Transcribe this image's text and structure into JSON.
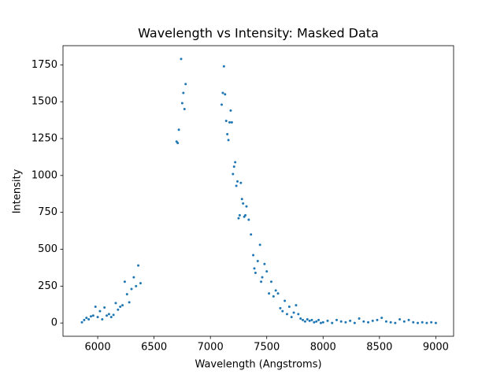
{
  "chart_data": {
    "type": "scatter",
    "title": "Wavelength vs Intensity: Masked Data",
    "x_label": "Wavelength (Angstroms)",
    "y_label": "Intensity",
    "x": [
      5860,
      5880,
      5900,
      5920,
      5940,
      5960,
      5980,
      6000,
      6020,
      6040,
      6060,
      6080,
      6100,
      6120,
      6140,
      6160,
      6180,
      6200,
      6220,
      6240,
      6260,
      6280,
      6300,
      6320,
      6340,
      6360,
      6380,
      6700,
      6710,
      6720,
      6740,
      6750,
      6760,
      6770,
      6780,
      7100,
      7110,
      7120,
      7130,
      7140,
      7150,
      7160,
      7170,
      7180,
      7190,
      7200,
      7210,
      7220,
      7230,
      7240,
      7250,
      7260,
      7270,
      7280,
      7290,
      7300,
      7310,
      7320,
      7340,
      7360,
      7380,
      7390,
      7400,
      7420,
      7440,
      7450,
      7460,
      7480,
      7500,
      7520,
      7540,
      7560,
      7580,
      7600,
      7620,
      7640,
      7660,
      7680,
      7700,
      7720,
      7740,
      7760,
      7780,
      7800,
      7820,
      7840,
      7860,
      7880,
      7900,
      7920,
      7940,
      7960,
      7980,
      8000,
      8040,
      8080,
      8120,
      8160,
      8200,
      8240,
      8280,
      8320,
      8360,
      8400,
      8440,
      8480,
      8520,
      8560,
      8600,
      8640,
      8680,
      8720,
      8760,
      8800,
      8840,
      8880,
      8920,
      8960,
      9000
    ],
    "values": [
      5,
      20,
      35,
      25,
      45,
      50,
      110,
      40,
      80,
      25,
      105,
      50,
      60,
      40,
      55,
      135,
      90,
      110,
      120,
      280,
      195,
      140,
      230,
      310,
      250,
      390,
      270,
      1230,
      1220,
      1310,
      1790,
      1490,
      1560,
      1450,
      1620,
      1480,
      1560,
      1740,
      1550,
      1370,
      1280,
      1240,
      1360,
      1440,
      1360,
      1010,
      1060,
      1090,
      930,
      960,
      710,
      730,
      950,
      840,
      810,
      720,
      730,
      790,
      700,
      600,
      460,
      370,
      340,
      420,
      530,
      280,
      310,
      400,
      350,
      200,
      280,
      180,
      220,
      200,
      100,
      80,
      150,
      60,
      110,
      40,
      70,
      120,
      60,
      30,
      20,
      10,
      25,
      15,
      20,
      5,
      10,
      20,
      0,
      5,
      15,
      0,
      20,
      10,
      5,
      15,
      0,
      30,
      10,
      5,
      15,
      20,
      35,
      10,
      5,
      0,
      25,
      10,
      20,
      5,
      0,
      5,
      0,
      5,
      0
    ],
    "color": "#1f77b4",
    "xlim": [
      5692,
      9158
    ],
    "ylim": [
      -90,
      1880
    ],
    "xticks": [
      6000,
      6500,
      7000,
      7500,
      8000,
      8500,
      9000
    ],
    "yticks": [
      0,
      250,
      500,
      750,
      1000,
      1250,
      1500,
      1750
    ],
    "grid": false
  }
}
